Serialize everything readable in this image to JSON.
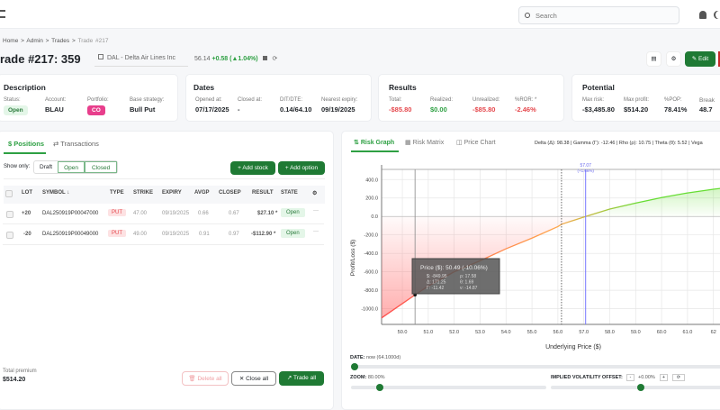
{
  "header": {
    "search_placeholder": "Search",
    "icons": [
      "menu-icon",
      "search-icon",
      "bell-icon",
      "moon-icon"
    ]
  },
  "breadcrumb": [
    "Home",
    ">",
    "Admin",
    ">",
    "Trades",
    ">",
    "Trade #217"
  ],
  "title": "rade #217: 359",
  "ticker": {
    "symbol": "DAL - Delta Air Lines Inc",
    "price": "56.14",
    "change": "+0.58 (▲1.04%)"
  },
  "actions": {
    "edit": "Edit"
  },
  "description": {
    "title": "Description",
    "status_label": "Status:",
    "status": "Open",
    "account_label": "Account:",
    "account": "BLAU",
    "portfolio_label": "Portfolio:",
    "portfolio": "CO",
    "strategy_label": "Base strategy:",
    "strategy": "Bull Put"
  },
  "dates": {
    "title": "Dates",
    "opened_label": "Opened at:",
    "opened": "07/17/2025",
    "closed_label": "Closed at:",
    "closed": "-",
    "dit_label": "DIT/DTE:",
    "dit": "0.14/64.10",
    "expiry_label": "Nearest expiry:",
    "expiry": "09/19/2025"
  },
  "results": {
    "title": "Results",
    "total_label": "Total:",
    "total": "-$85.80",
    "realized_label": "Realized:",
    "realized": "$0.00",
    "unrealized_label": "Unrealized:",
    "unrealized": "-$85.80",
    "ror_label": "%ROR: *",
    "ror": "-2.46%"
  },
  "potential": {
    "title": "Potential",
    "risk_label": "Max risk:",
    "risk": "-$3,485.80",
    "profit_label": "Max profit:",
    "profit": "$514.20",
    "pop_label": "%POP:",
    "pop": "78.41%",
    "break_label": "Break",
    "break": "48.7"
  },
  "positions": {
    "tabs": [
      "Positions",
      "Transactions"
    ],
    "show_only": "Show only:",
    "filters": [
      "Draft",
      "Open",
      "Closed"
    ],
    "add_stock": "+ Add stock",
    "add_option": "+ Add option",
    "columns": [
      "LOT",
      "SYMBOL ↓",
      "TYPE",
      "STRIKE",
      "EXPIRY",
      "AVGP",
      "CLOSEP",
      "RESULT",
      "STATE"
    ],
    "rows": [
      {
        "lot": "+20",
        "symbol": "DAL250919P00047000",
        "type": "PUT",
        "strike": "47.00",
        "expiry": "09/19/2025",
        "avgp": "0.66",
        "closep": "0.67",
        "result": "$27.10 *",
        "state": "Open"
      },
      {
        "lot": "-20",
        "symbol": "DAL250919P00049000",
        "type": "PUT",
        "strike": "49.00",
        "expiry": "09/19/2025",
        "avgp": "0.91",
        "closep": "0.97",
        "result": "-$112.90 *",
        "state": "Open"
      }
    ],
    "total_label": "Total premium",
    "total": "$514.20",
    "delete_all": "Delete all",
    "close_all": "Close all",
    "trade_all": "Trade all"
  },
  "risk": {
    "tabs": [
      "Risk Graph",
      "Risk Matrix",
      "Price Chart"
    ],
    "greeks": "Delta (Δ): 98.38 | Gamma (Γ): -12.46 | Rho (ρ): 10.75 | Theta (θ): 5.52 | Vega",
    "date_label": "DATE:",
    "date_value": "now (64.1000d)",
    "zoom_label": "ZOOM:",
    "zoom_value": "80.00%",
    "iv_label": "IMPLIED VOLATILITY OFFSET:",
    "iv_value": "+0.00%",
    "iv_minus": "-",
    "iv_plus": "+",
    "zoom_fraction": 0.13,
    "date_fraction": 0.0,
    "iv_fraction": 0.5
  },
  "chart_data": {
    "type": "line",
    "xlabel": "Underlying Price ($)",
    "ylabel": "Profit/Loss ($)",
    "xlim": [
      49.2,
      62.6
    ],
    "ylim": [
      -1170,
      510
    ],
    "xticks": [
      "50.0",
      "51.0",
      "52.0",
      "53.0",
      "54.0",
      "55.0",
      "56.0",
      "57.0",
      "58.0",
      "59.0",
      "60.0",
      "61.0",
      "62"
    ],
    "yticks": [
      "400.0",
      "200.0",
      "0.0",
      "-200.0",
      "-400.0",
      "-600.0",
      "-800.0",
      "-1000.0"
    ],
    "x": [
      49.2,
      50,
      50.49,
      51,
      52,
      53,
      54,
      55,
      56,
      56.14,
      57.07,
      58,
      59,
      60,
      61,
      62,
      62.6
    ],
    "y": [
      -1100,
      -945,
      -850,
      -755,
      -600,
      -480,
      -350,
      -235,
      -110,
      -85,
      0,
      80,
      145,
      205,
      255,
      295,
      315
    ],
    "current_price": 56.14,
    "marker": {
      "price": 57.07,
      "label": "57.07",
      "sub": "(+1.66%)"
    },
    "tooltip": {
      "price": 50.49,
      "title": "Price ($): 50.49 (-10.06%)",
      "lines": [
        "$: -849.95",
        "ρ: 17.58",
        "Δ: 171.25",
        "θ: 1.69",
        "Γ: -11.42",
        "ν: -14.87"
      ]
    },
    "grid": true,
    "colors": {
      "loss": "#ff4d4d",
      "mid": "#ffa64d",
      "profit": "#66dd33"
    }
  }
}
